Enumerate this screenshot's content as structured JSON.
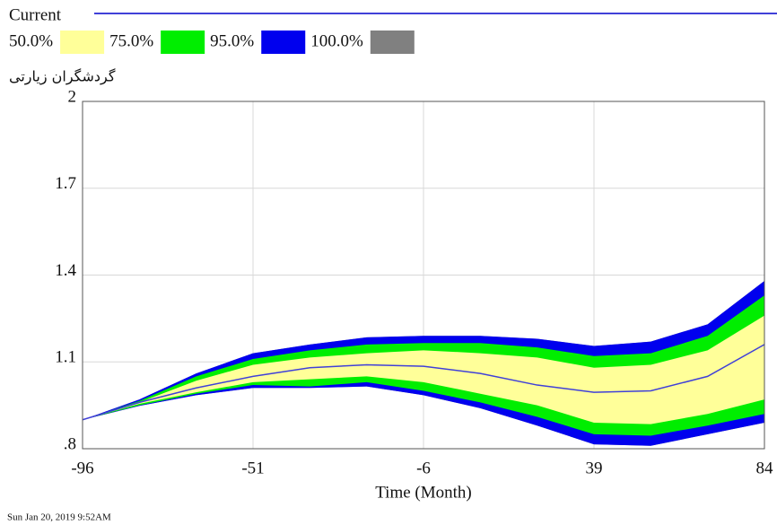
{
  "chart_data": {
    "type": "band",
    "x_label": "Time (Month)",
    "y_label": "گردشگران زیارتی",
    "footer": "Sun Jan 20, 2019 9:52AM",
    "x": [
      -96,
      -81,
      -66,
      -51,
      -36,
      -21,
      -6,
      9,
      24,
      39,
      54,
      69,
      84
    ],
    "series": [
      {
        "name": "Current",
        "color": "#4040d8",
        "values": [
          0.9,
          0.96,
          1.01,
          1.05,
          1.08,
          1.09,
          1.085,
          1.06,
          1.02,
          0.995,
          1.0,
          1.05,
          1.16
        ]
      }
    ],
    "bands": [
      {
        "name": "50.0%",
        "color": "#ffff99",
        "upper": [
          0.9,
          0.96,
          1.035,
          1.09,
          1.115,
          1.13,
          1.14,
          1.13,
          1.115,
          1.08,
          1.09,
          1.14,
          1.26
        ],
        "lower": [
          0.9,
          0.955,
          0.995,
          1.03,
          1.04,
          1.05,
          1.03,
          0.99,
          0.95,
          0.89,
          0.885,
          0.92,
          0.97
        ]
      },
      {
        "name": "75.0%",
        "color": "#00ee00",
        "upper": [
          0.9,
          0.965,
          1.05,
          1.11,
          1.14,
          1.16,
          1.165,
          1.165,
          1.15,
          1.12,
          1.13,
          1.19,
          1.33
        ],
        "lower": [
          0.9,
          0.95,
          0.99,
          1.02,
          1.015,
          1.03,
          1.0,
          0.96,
          0.91,
          0.85,
          0.845,
          0.88,
          0.92
        ]
      },
      {
        "name": "95.0%",
        "color": "#0000ee",
        "upper": [
          0.9,
          0.97,
          1.06,
          1.13,
          1.16,
          1.185,
          1.19,
          1.19,
          1.18,
          1.155,
          1.17,
          1.23,
          1.38
        ],
        "lower": [
          0.9,
          0.948,
          0.985,
          1.01,
          1.01,
          1.015,
          0.985,
          0.94,
          0.88,
          0.815,
          0.81,
          0.85,
          0.89
        ]
      },
      {
        "name": "100.0%",
        "color": "#808080",
        "upper": [
          0.9,
          0.97,
          1.06,
          1.13,
          1.16,
          1.185,
          1.19,
          1.19,
          1.18,
          1.155,
          1.17,
          1.23,
          1.38
        ],
        "lower": [
          0.9,
          0.948,
          0.985,
          1.01,
          1.01,
          1.015,
          0.985,
          0.94,
          0.88,
          0.815,
          0.81,
          0.85,
          0.89
        ]
      }
    ],
    "xlim": [
      -96,
      84
    ],
    "xticks": [
      -96,
      -51,
      -6,
      39,
      84
    ],
    "ylim": [
      0.8,
      2
    ],
    "yticks": [
      {
        "value": 0.8,
        "label": ".8"
      },
      1.1,
      1.4,
      1.7,
      2
    ],
    "grid": true
  }
}
